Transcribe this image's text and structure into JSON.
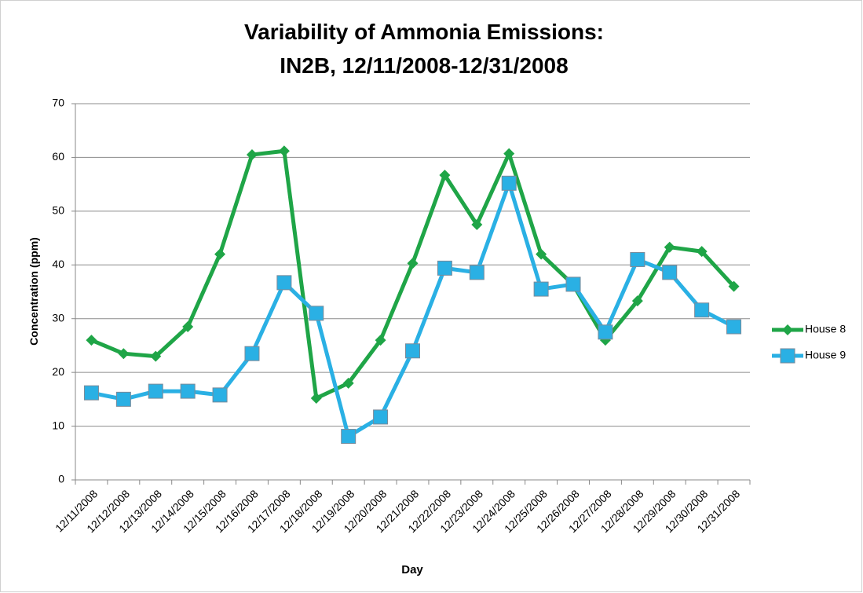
{
  "chart_data": {
    "type": "line",
    "title": [
      "Variability of Ammonia Emissions:",
      "IN2B, 12/11/2008-12/31/2008"
    ],
    "x_label": "Day",
    "y_label": "Concentration (ppm)",
    "categories": [
      "12/11/2008",
      "12/12/2008",
      "12/13/2008",
      "12/14/2008",
      "12/15/2008",
      "12/16/2008",
      "12/17/2008",
      "12/18/2008",
      "12/19/2008",
      "12/20/2008",
      "12/21/2008",
      "12/22/2008",
      "12/23/2008",
      "12/24/2008",
      "12/25/2008",
      "12/26/2008",
      "12/27/2008",
      "12/28/2008",
      "12/29/2008",
      "12/30/2008",
      "12/31/2008"
    ],
    "series": [
      {
        "name": "House 8",
        "color": "#1fa547",
        "marker": "diamond",
        "values": [
          26,
          23.5,
          23,
          28.5,
          42,
          60.5,
          61.2,
          15.2,
          18,
          26,
          40.3,
          56.7,
          47.5,
          60.7,
          42,
          36.3,
          26,
          33.3,
          43.3,
          42.5,
          36
        ]
      },
      {
        "name": "House 9",
        "color": "#2ab0e4",
        "marker": "square",
        "values": [
          16.2,
          15,
          16.5,
          16.5,
          15.8,
          23.5,
          36.7,
          31,
          8.1,
          11.7,
          24,
          39.4,
          38.6,
          55.2,
          35.5,
          36.4,
          27.5,
          41,
          38.6,
          31.6,
          28.5
        ]
      }
    ],
    "ylim": [
      0,
      70
    ],
    "yticks": [
      0,
      10,
      20,
      30,
      40,
      50,
      60,
      70
    ],
    "grid": true,
    "legend": "right"
  }
}
